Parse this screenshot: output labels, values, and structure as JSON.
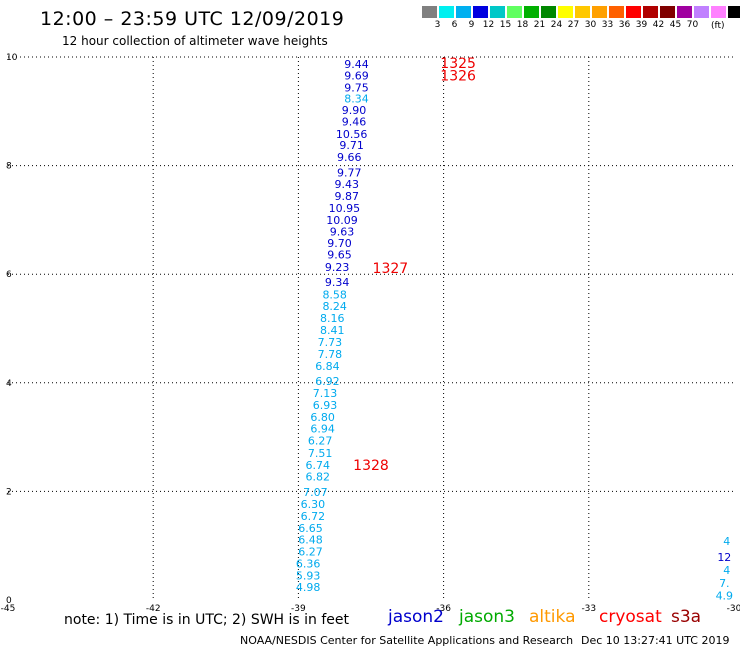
{
  "header": {
    "title": "12:00 – 23:59 UTC 12/09/2019",
    "subtitle": "12 hour collection of altimeter wave heights"
  },
  "colorscale": {
    "colors": [
      "#808080",
      "#00f0f0",
      "#00b0f0",
      "#0000e0",
      "#00c8c8",
      "#60ff60",
      "#00b000",
      "#008800",
      "#ffff00",
      "#ffc800",
      "#ffa000",
      "#ff6000",
      "#ff0000",
      "#b00000",
      "#800000",
      "#a000a0",
      "#c080ff",
      "#ff80ff",
      "#000000"
    ],
    "labels": [
      "3",
      "6",
      "9",
      "12",
      "15",
      "18",
      "21",
      "24",
      "27",
      "30",
      "33",
      "36",
      "39",
      "42",
      "45",
      "70"
    ],
    "unit": "(ft)"
  },
  "chart_data": {
    "type": "scatter",
    "x_ticks": [
      "-45",
      "-42",
      "-39",
      "-36",
      "-33",
      "-30"
    ],
    "y_ticks": [
      "0",
      "2",
      "4",
      "6",
      "8",
      "10"
    ],
    "xlim": [
      -45,
      -30
    ],
    "ylim": [
      0,
      10
    ],
    "grid": true,
    "points": [
      {
        "x": -37.8,
        "y": 9.87,
        "label": "9.44",
        "color": "#0000cc"
      },
      {
        "x": -37.8,
        "y": 9.66,
        "label": "9.69",
        "color": "#0000cc"
      },
      {
        "x": -37.8,
        "y": 9.44,
        "label": "9.75",
        "color": "#0000cc"
      },
      {
        "x": -37.8,
        "y": 9.24,
        "label": "8.34",
        "color": "#00aaee"
      },
      {
        "x": -37.85,
        "y": 9.02,
        "label": "9.90",
        "color": "#0000cc"
      },
      {
        "x": -37.85,
        "y": 8.81,
        "label": "9.46",
        "color": "#0000cc"
      },
      {
        "x": -37.9,
        "y": 8.58,
        "label": "10.56",
        "color": "#0000cc"
      },
      {
        "x": -37.9,
        "y": 8.38,
        "label": "9.71",
        "color": "#0000cc"
      },
      {
        "x": -37.95,
        "y": 8.16,
        "label": "9.66",
        "color": "#0000cc"
      },
      {
        "x": -37.95,
        "y": 7.87,
        "label": "9.77",
        "color": "#0000cc"
      },
      {
        "x": -38.0,
        "y": 7.66,
        "label": "9.43",
        "color": "#0000cc"
      },
      {
        "x": -38.0,
        "y": 7.44,
        "label": "9.87",
        "color": "#0000cc"
      },
      {
        "x": -38.05,
        "y": 7.22,
        "label": "10.95",
        "color": "#0000cc"
      },
      {
        "x": -38.1,
        "y": 7.0,
        "label": "10.09",
        "color": "#0000cc"
      },
      {
        "x": -38.1,
        "y": 6.79,
        "label": "9.63",
        "color": "#0000cc"
      },
      {
        "x": -38.15,
        "y": 6.57,
        "label": "9.70",
        "color": "#0000cc"
      },
      {
        "x": -38.15,
        "y": 6.36,
        "label": "9.65",
        "color": "#0000cc"
      },
      {
        "x": -38.2,
        "y": 6.13,
        "label": "9.23",
        "color": "#0000cc"
      },
      {
        "x": -38.2,
        "y": 5.86,
        "label": "9.34",
        "color": "#0000cc"
      },
      {
        "x": -38.25,
        "y": 5.63,
        "label": "8.58",
        "color": "#00aaee"
      },
      {
        "x": -38.25,
        "y": 5.41,
        "label": "8.24",
        "color": "#00aaee"
      },
      {
        "x": -38.3,
        "y": 5.19,
        "label": "8.16",
        "color": "#00aaee"
      },
      {
        "x": -38.3,
        "y": 4.97,
        "label": "8.41",
        "color": "#00aaee"
      },
      {
        "x": -38.35,
        "y": 4.75,
        "label": "7.73",
        "color": "#00aaee"
      },
      {
        "x": -38.35,
        "y": 4.53,
        "label": "7.78",
        "color": "#00aaee"
      },
      {
        "x": -38.4,
        "y": 4.31,
        "label": "6.84",
        "color": "#00aaee"
      },
      {
        "x": -38.4,
        "y": 4.03,
        "label": "6.92",
        "color": "#00aaee"
      },
      {
        "x": -38.45,
        "y": 3.81,
        "label": "7.13",
        "color": "#00aaee"
      },
      {
        "x": -38.45,
        "y": 3.59,
        "label": "6.93",
        "color": "#00aaee"
      },
      {
        "x": -38.5,
        "y": 3.37,
        "label": "6.80",
        "color": "#00aaee"
      },
      {
        "x": -38.5,
        "y": 3.16,
        "label": "6.94",
        "color": "#00aaee"
      },
      {
        "x": -38.55,
        "y": 2.94,
        "label": "6.27",
        "color": "#00aaee"
      },
      {
        "x": -38.55,
        "y": 2.71,
        "label": "7.51",
        "color": "#00aaee"
      },
      {
        "x": -38.6,
        "y": 2.49,
        "label": "6.74",
        "color": "#00aaee"
      },
      {
        "x": -38.6,
        "y": 2.27,
        "label": "6.82",
        "color": "#00aaee"
      },
      {
        "x": -38.65,
        "y": 1.99,
        "label": "7.07",
        "color": "#00aaee"
      },
      {
        "x": -38.7,
        "y": 1.77,
        "label": "6.30",
        "color": "#00aaee"
      },
      {
        "x": -38.7,
        "y": 1.55,
        "label": "6.72",
        "color": "#00aaee"
      },
      {
        "x": -38.75,
        "y": 1.33,
        "label": "6.65",
        "color": "#00aaee"
      },
      {
        "x": -38.75,
        "y": 1.11,
        "label": "6.48",
        "color": "#00aaee"
      },
      {
        "x": -38.75,
        "y": 0.89,
        "label": "6.27",
        "color": "#00aaee"
      },
      {
        "x": -38.8,
        "y": 0.67,
        "label": "6.36",
        "color": "#00aaee"
      },
      {
        "x": -38.8,
        "y": 0.45,
        "label": "5.93",
        "color": "#00aaee"
      },
      {
        "x": -38.8,
        "y": 0.24,
        "label": "4.98",
        "color": "#00aaee"
      },
      {
        "x": -30.15,
        "y": 1.09,
        "label": "4",
        "color": "#00aaee"
      },
      {
        "x": -30.2,
        "y": 0.79,
        "label": "12",
        "color": "#0000cc"
      },
      {
        "x": -30.15,
        "y": 0.55,
        "label": "4",
        "color": "#00aaee"
      },
      {
        "x": -30.2,
        "y": 0.31,
        "label": "7.",
        "color": "#00aaee"
      },
      {
        "x": -30.2,
        "y": 0.08,
        "label": "4.9",
        "color": "#00aaee"
      }
    ],
    "passes": [
      {
        "x": -35.7,
        "y": 9.89,
        "label": "1325"
      },
      {
        "x": -35.7,
        "y": 9.66,
        "label": "1326"
      },
      {
        "x": -37.1,
        "y": 6.11,
        "label": "1327"
      },
      {
        "x": -37.5,
        "y": 2.49,
        "label": "1328"
      }
    ]
  },
  "footer": {
    "note": "note:  1) Time is in UTC;  2) SWH is in feet",
    "satellites": [
      {
        "name": "jason2",
        "color": "#0000cc"
      },
      {
        "name": "jason3",
        "color": "#00aa00"
      },
      {
        "name": "altika",
        "color": "#ff9900"
      },
      {
        "name": "cryosat",
        "color": "#ff0000"
      },
      {
        "name": "s3a",
        "color": "#990000"
      }
    ],
    "credit": "NOAA/NESDIS Center for Satellite Applications and Research",
    "timestamp": "Dec 10 13:27:41 UTC 2019"
  }
}
